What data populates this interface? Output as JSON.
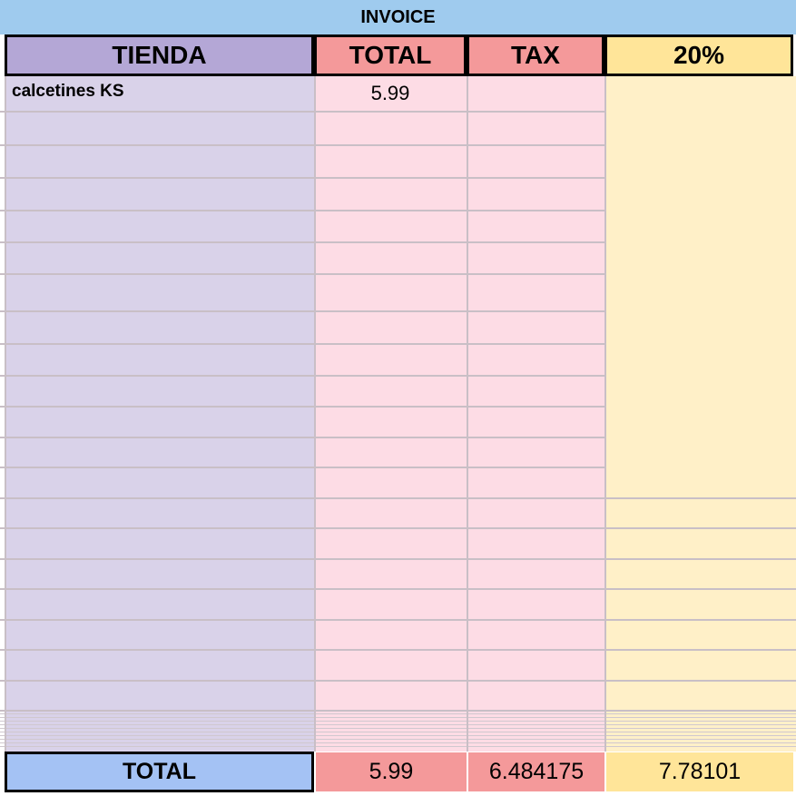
{
  "header": {
    "title": "INVOICE"
  },
  "table": {
    "columns": [
      "TIENDA",
      "TOTAL",
      "TAX",
      "20%"
    ],
    "rows": [
      [
        "calcetines KS",
        5.99
      ]
    ],
    "total": {
      "label": "TOTAL",
      "values": [
        5.99,
        6.484175,
        7.78101
      ]
    }
  }
}
